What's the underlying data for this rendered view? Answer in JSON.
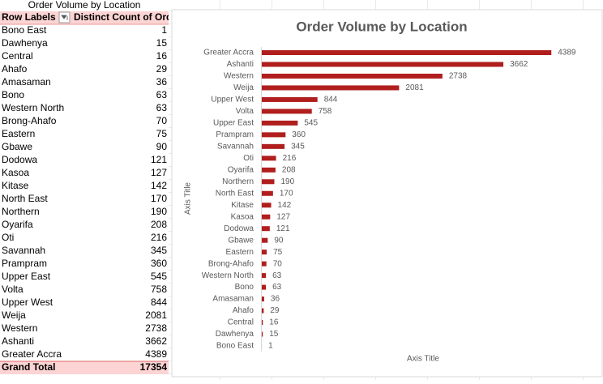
{
  "table": {
    "title": "Order Volume by Location",
    "headers": [
      "Row Labels",
      "Distinct Count of Ord"
    ],
    "rows": [
      [
        "Bono East",
        1
      ],
      [
        "Dawhenya",
        15
      ],
      [
        "Central",
        16
      ],
      [
        "Ahafo",
        29
      ],
      [
        "Amasaman",
        36
      ],
      [
        "Bono",
        63
      ],
      [
        "Western North",
        63
      ],
      [
        "Brong-Ahafo",
        70
      ],
      [
        "Eastern",
        75
      ],
      [
        "Gbawe",
        90
      ],
      [
        "Dodowa",
        121
      ],
      [
        "Kasoa",
        127
      ],
      [
        "Kitase",
        142
      ],
      [
        "North East",
        170
      ],
      [
        "Northern",
        190
      ],
      [
        "Oyarifa",
        208
      ],
      [
        "Oti",
        216
      ],
      [
        "Savannah",
        345
      ],
      [
        "Prampram",
        360
      ],
      [
        "Upper East",
        545
      ],
      [
        "Volta",
        758
      ],
      [
        "Upper West",
        844
      ],
      [
        "Weija",
        2081
      ],
      [
        "Western",
        2738
      ],
      [
        "Ashanti",
        3662
      ],
      [
        "Greater Accra",
        4389
      ]
    ],
    "total": [
      "Grand Total",
      17354
    ]
  },
  "chart_data": {
    "type": "barh",
    "title": "Order Volume by Location",
    "categories": [
      "Bono East",
      "Dawhenya",
      "Central",
      "Ahafo",
      "Amasaman",
      "Bono",
      "Western North",
      "Brong-Ahafo",
      "Eastern",
      "Gbawe",
      "Dodowa",
      "Kasoa",
      "Kitase",
      "North East",
      "Northern",
      "Oyarifa",
      "Oti",
      "Savannah",
      "Prampram",
      "Upper East",
      "Volta",
      "Upper West",
      "Weija",
      "Western",
      "Ashanti",
      "Greater Accra"
    ],
    "values": [
      1,
      15,
      16,
      29,
      36,
      63,
      63,
      70,
      75,
      90,
      121,
      127,
      142,
      170,
      190,
      208,
      216,
      345,
      360,
      545,
      758,
      844,
      2081,
      2738,
      3662,
      4389
    ],
    "color": "#b01e1e",
    "xlim": [
      0,
      5000
    ],
    "x_axis_title": "Axis Title",
    "y_axis_title": "Axis Title"
  }
}
